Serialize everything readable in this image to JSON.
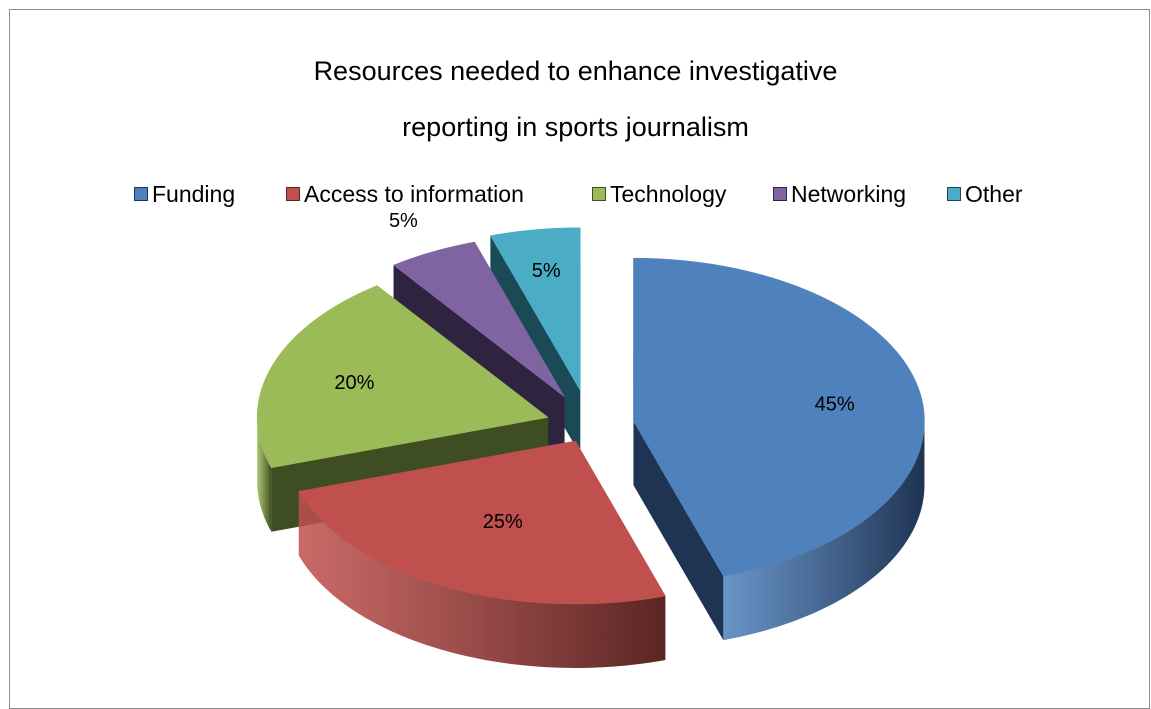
{
  "chart_data": {
    "type": "pie",
    "title_lines": [
      "Resources needed to enhance investigative",
      "reporting in sports journalism"
    ],
    "legend_placement": "top",
    "slices": [
      {
        "name": "Funding",
        "value": 45,
        "label": "45%",
        "color": "#4f81bd",
        "dark": "#1f3352"
      },
      {
        "name": "Access to information",
        "value": 25,
        "label": "25%",
        "color": "#c0504d",
        "dark": "#5a2523"
      },
      {
        "name": "Technology",
        "value": 20,
        "label": "20%",
        "color": "#9bbb59",
        "dark": "#3f4e22"
      },
      {
        "name": "Networking",
        "value": 5,
        "label": "5%",
        "color": "#8064a2",
        "dark": "#2e2440"
      },
      {
        "name": "Other",
        "value": 5,
        "label": "5%",
        "color": "#4bacc6",
        "dark": "#1b4a57"
      }
    ]
  }
}
